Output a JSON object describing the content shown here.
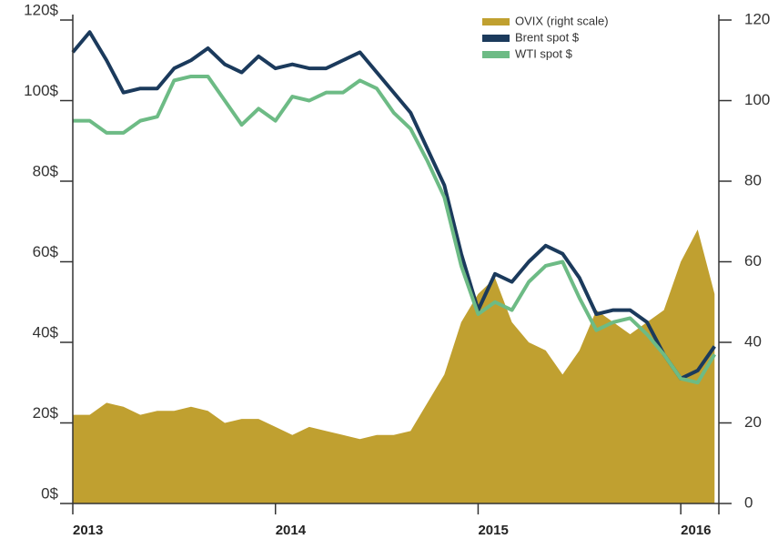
{
  "chart_data": {
    "type": "line",
    "categories": [
      "2013",
      null,
      null,
      null,
      null,
      null,
      null,
      null,
      null,
      null,
      null,
      null,
      "2014",
      null,
      null,
      null,
      null,
      null,
      null,
      null,
      null,
      null,
      null,
      null,
      "2015",
      null,
      null,
      null,
      null,
      null,
      null,
      null,
      null,
      null,
      null,
      null,
      "2016",
      null,
      null
    ],
    "series": [
      {
        "name": "OVIX (right scale)",
        "color": "#c0a030",
        "axis": "y2",
        "kind": "area",
        "values": [
          22,
          22,
          25,
          24,
          22,
          23,
          23,
          24,
          23,
          20,
          21,
          21,
          19,
          17,
          19,
          18,
          17,
          16,
          17,
          17,
          18,
          25,
          32,
          45,
          52,
          56,
          45,
          40,
          38,
          32,
          38,
          48,
          45,
          42,
          45,
          48,
          60,
          68,
          52
        ]
      },
      {
        "name": "Brent spot $",
        "color": "#1b3a5c",
        "values": [
          112,
          117,
          110,
          102,
          103,
          103,
          108,
          110,
          113,
          109,
          107,
          111,
          108,
          109,
          108,
          108,
          110,
          112,
          107,
          102,
          97,
          88,
          79,
          62,
          48,
          57,
          55,
          60,
          64,
          62,
          56,
          47,
          48,
          48,
          45,
          37,
          31,
          33,
          39
        ]
      },
      {
        "name": "WTI spot $",
        "color": "#6dbb85",
        "values": [
          95,
          95,
          92,
          92,
          95,
          96,
          105,
          106,
          106,
          100,
          94,
          98,
          95,
          101,
          100,
          102,
          102,
          105,
          103,
          97,
          93,
          85,
          76,
          59,
          47,
          50,
          48,
          55,
          59,
          60,
          51,
          43,
          45,
          46,
          42,
          37,
          31,
          30,
          37
        ]
      }
    ],
    "ylim": [
      0,
      120
    ],
    "yticks": [
      {
        "value": 0,
        "label": "0$"
      },
      {
        "value": 20,
        "label": "20$"
      },
      {
        "value": 40,
        "label": "40$"
      },
      {
        "value": 60,
        "label": "60$"
      },
      {
        "value": 80,
        "label": "80$"
      },
      {
        "value": 100,
        "label": "100$"
      },
      {
        "value": 120,
        "label": "120$"
      }
    ],
    "y2lim": [
      0,
      120
    ],
    "y2ticks": [
      0,
      20,
      40,
      60,
      80,
      100,
      120
    ],
    "legend": "top-right"
  }
}
